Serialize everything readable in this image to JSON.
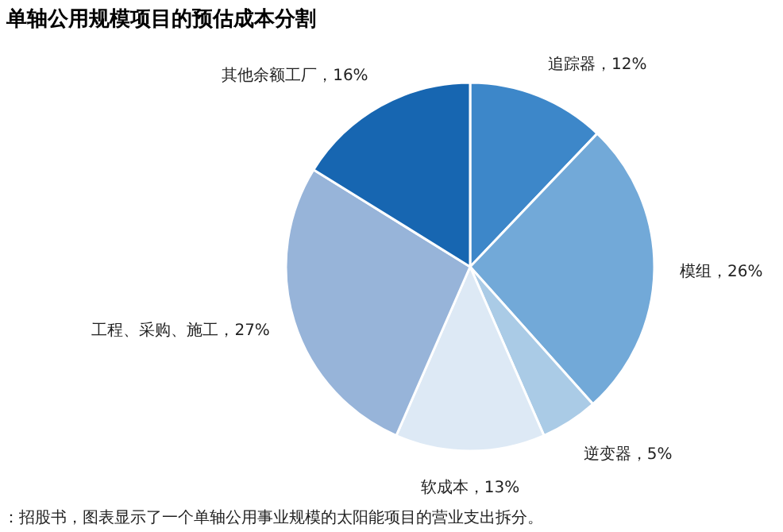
{
  "chart_data": {
    "type": "pie",
    "title": "单轴公用规模项目的预估成本分割",
    "categories": [
      "追踪器",
      "模组",
      "逆变器",
      "软成本",
      "工程、采购、施工",
      "其他余额工厂"
    ],
    "values": [
      12,
      26,
      5,
      13,
      27,
      16
    ],
    "value_labels": [
      "，12%",
      "，26%",
      "，5%",
      "，13%",
      "，27%",
      "，16%"
    ],
    "colors": [
      "#3d87c9",
      "#72a9d8",
      "#aacbe6",
      "#dde9f5",
      "#97b4d9",
      "#1766b1"
    ],
    "annotations": [
      "：招股书，图表显示了一个单轴公用事业规模的太阳能项目的营业支出拆分。"
    ]
  }
}
